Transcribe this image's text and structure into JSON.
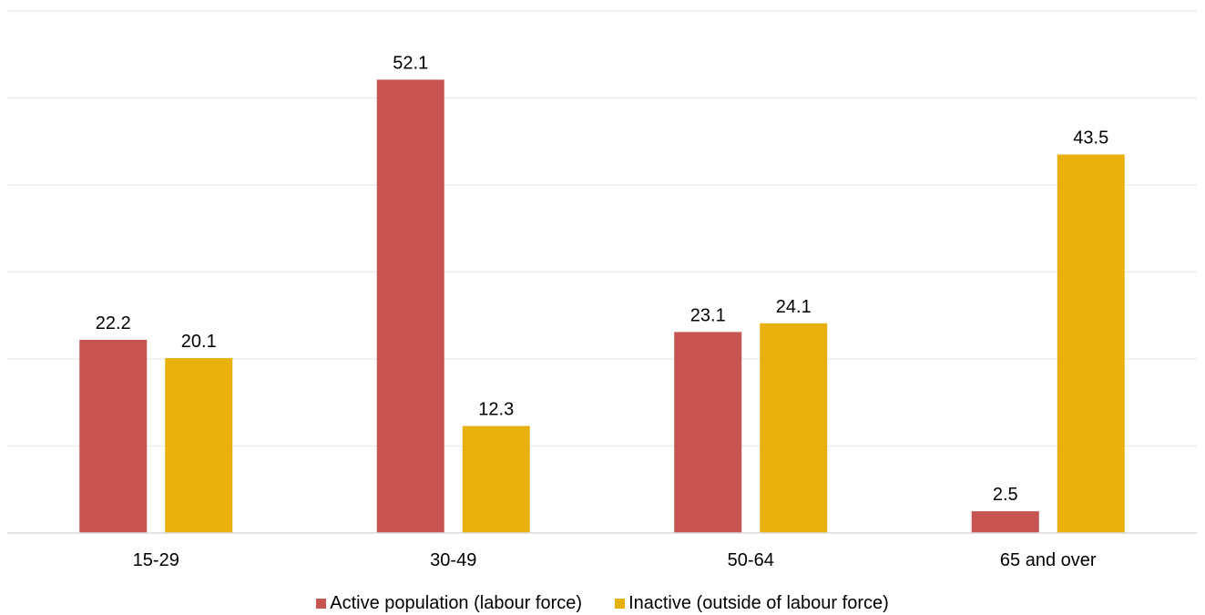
{
  "chart_data": {
    "type": "bar",
    "title": "",
    "xlabel": "",
    "ylabel": "",
    "categories": [
      "15-29",
      "30-49",
      "50-64",
      "65 and over"
    ],
    "series": [
      {
        "name": "Active population (labour force)",
        "color": "#C65450",
        "values": [
          22.2,
          52.1,
          23.1,
          2.5
        ]
      },
      {
        "name": "Inactive (outside of labour force)",
        "color": "#E8B00D",
        "values": [
          20.1,
          12.3,
          24.1,
          43.5
        ]
      }
    ],
    "ylim": [
      0,
      60
    ],
    "gridlines": [
      10,
      20,
      30,
      40,
      50,
      60
    ],
    "grid": true,
    "y_axis_labels_shown": false,
    "data_labels": true,
    "legend_position": "bottom"
  }
}
